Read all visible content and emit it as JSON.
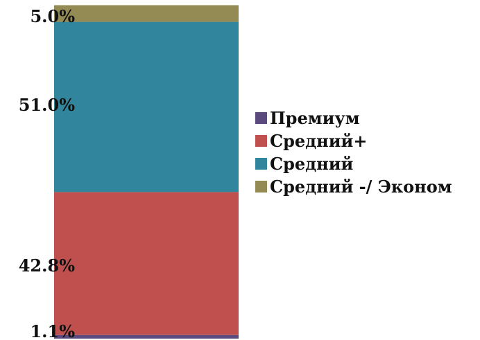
{
  "chart_data": {
    "type": "bar",
    "stacked": true,
    "categories": [
      ""
    ],
    "series": [
      {
        "name": "Премиум",
        "values": [
          1.1
        ],
        "label": "1.1%",
        "color": "#5B4A7E"
      },
      {
        "name": "Средний+",
        "values": [
          42.8
        ],
        "label": "42.8%",
        "color": "#C0504D"
      },
      {
        "name": "Средний",
        "values": [
          51.0
        ],
        "label": "51.0%",
        "color": "#31859C"
      },
      {
        "name": "Средний -/ Эконом",
        "values": [
          5.0
        ],
        "label": "5.0%",
        "color": "#948A54"
      }
    ],
    "ylim": [
      0,
      100
    ],
    "grid": false,
    "legend": "right"
  }
}
